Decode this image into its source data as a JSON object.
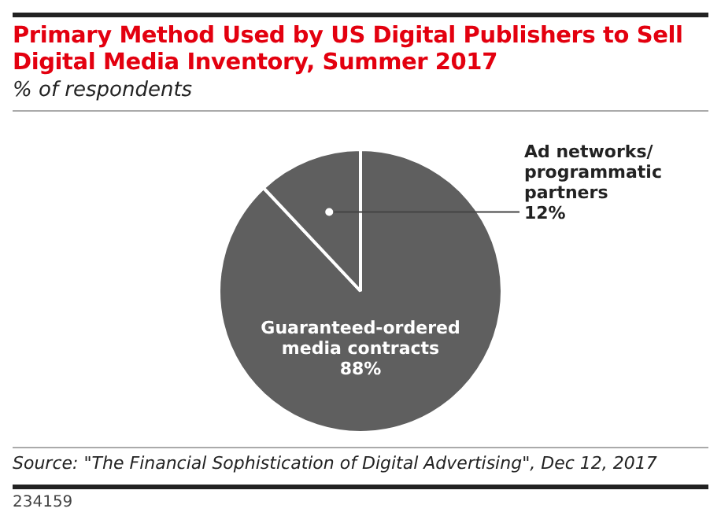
{
  "chart_data": {
    "type": "pie",
    "title": "Primary Method Used by US Digital Publishers to Sell Digital Media Inventory, Summer 2017",
    "subtitle": "% of respondents",
    "categories": [
      "Guaranteed-ordered media contracts",
      "Ad networks/ programmatic partners"
    ],
    "values": [
      88,
      12
    ],
    "value_labels": [
      "88%",
      "12%"
    ],
    "colors": [
      "#5f5f5f",
      "#5f5f5f"
    ],
    "annotations": [
      "Source: \"The Financial Sophistication of Digital Advertising\", Dec 12, 2017",
      "234159"
    ]
  }
}
